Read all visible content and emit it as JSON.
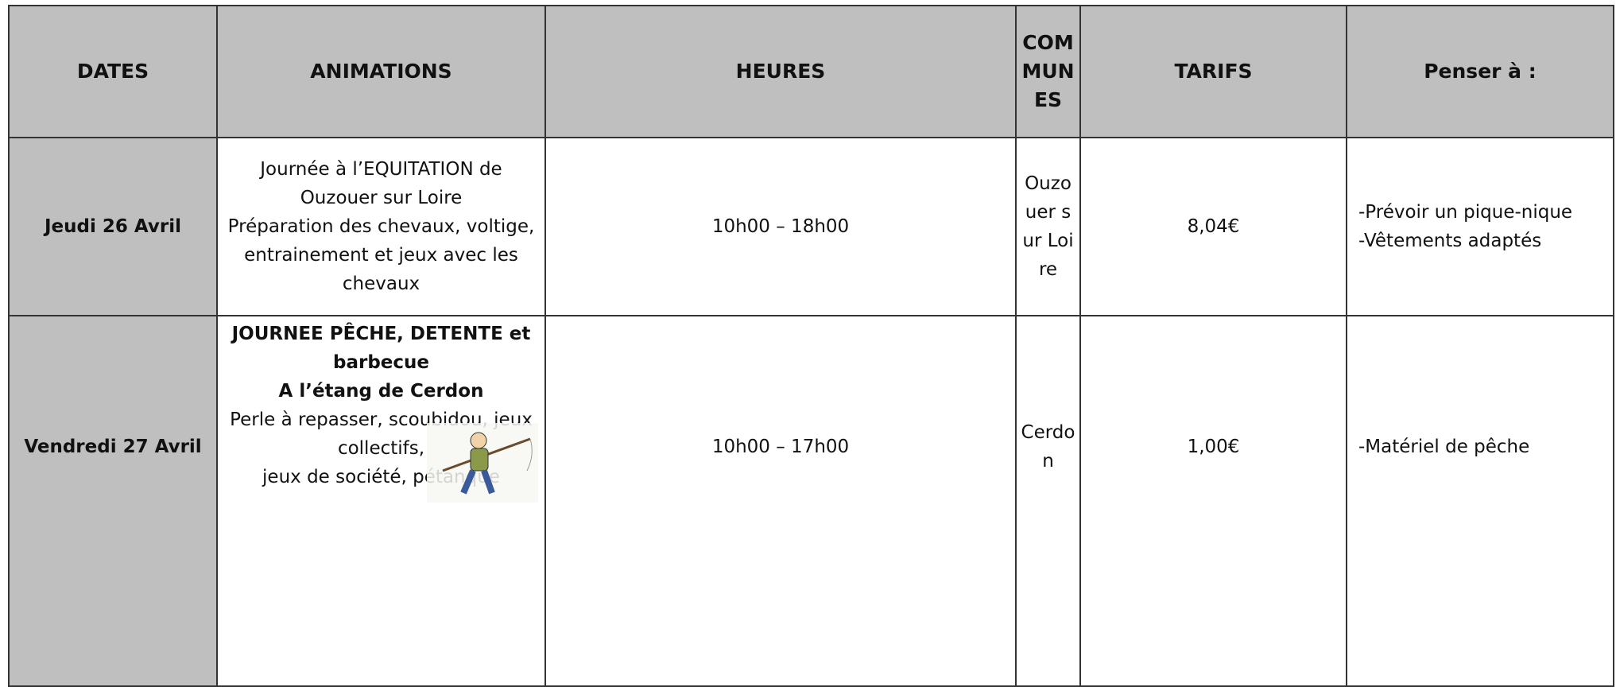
{
  "table": {
    "headers": [
      "DATES",
      "ANIMATIONS",
      "HEURES",
      "COMMUNES",
      "TARIFS",
      "Penser à :"
    ],
    "rows": [
      {
        "date": "Jeudi 26 Avril",
        "animation": {
          "bold": [],
          "lines": [
            "Journée à l’EQUITATION de Ouzouer sur Loire",
            "Préparation des chevaux, voltige, entrainement et jeux avec les chevaux"
          ]
        },
        "hours": "10h00 – 18h00",
        "commune": "Ouzouer sur Loire",
        "tarif": "8,04€",
        "notes": [
          "-Prévoir un pique-nique",
          "-Vêtements adaptés"
        ]
      },
      {
        "date": "Vendredi 27 Avril",
        "animation": {
          "bold": [
            "JOURNEE PÊCHE, DETENTE et barbecue",
            "A l’étang de Cerdon"
          ],
          "lines": [
            "Perle à repasser, scoubidou, jeux",
            "collectifs,",
            "jeux de société, pétanque"
          ]
        },
        "hours": "10h00 – 17h00",
        "commune": "Cerdon",
        "tarif": "1,00€",
        "notes": [
          "-Matériel de pêche"
        ]
      }
    ]
  }
}
